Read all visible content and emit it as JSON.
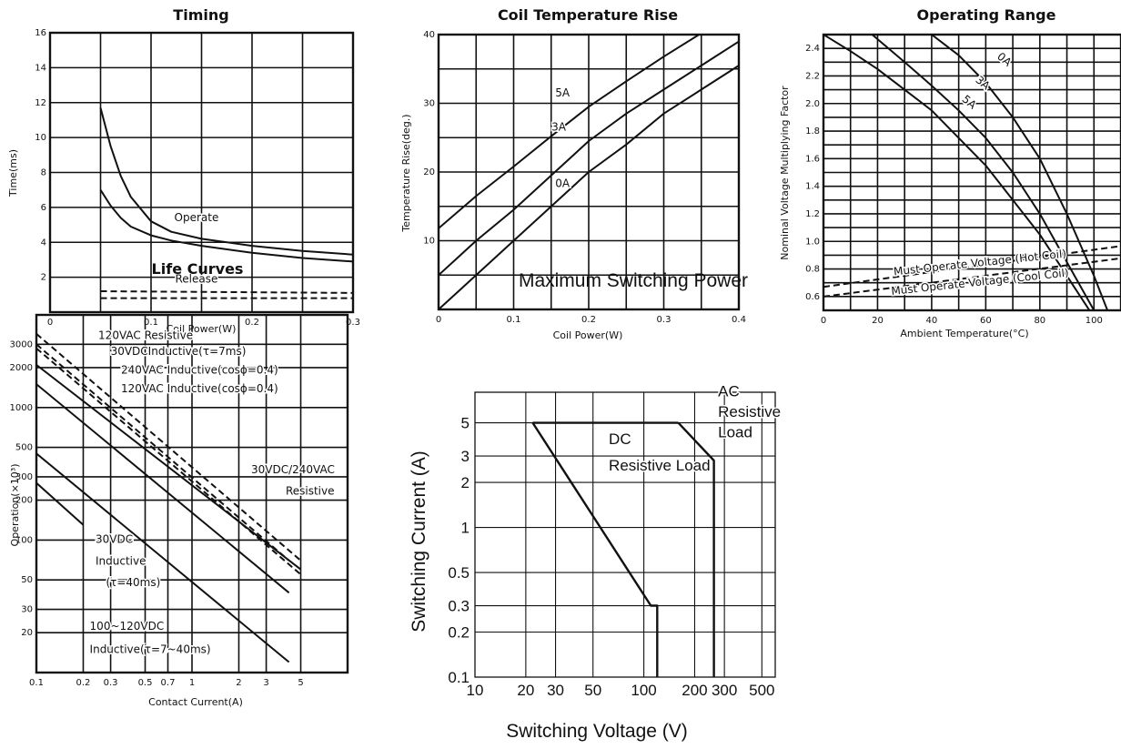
{
  "chart_data": [
    {
      "id": "timing",
      "type": "line",
      "title": "Timing",
      "xlabel": "Coil Power(W)",
      "ylabel": "Time(ms)",
      "xlim": [
        0,
        0.3
      ],
      "ylim": [
        0,
        16
      ],
      "xticks": [
        0,
        0.1,
        0.2,
        0.3
      ],
      "xtick_labels": [
        "0",
        "0.1",
        "0.2",
        "0.3"
      ],
      "yticks": [
        2,
        4,
        6,
        8,
        10,
        12,
        14,
        16
      ],
      "ytick_labels": [
        "2",
        "4",
        "6",
        "8",
        "10",
        "12",
        "14",
        "16"
      ],
      "series": [
        {
          "name": "Operate",
          "dashed": false,
          "x": [
            0.05,
            0.06,
            0.07,
            0.08,
            0.1,
            0.12,
            0.15,
            0.2,
            0.25,
            0.3
          ],
          "y": [
            11.7,
            9.5,
            7.8,
            6.6,
            5.2,
            4.6,
            4.2,
            3.8,
            3.5,
            3.3
          ]
        },
        {
          "name": "",
          "dashed": false,
          "x": [
            0.05,
            0.06,
            0.07,
            0.08,
            0.1,
            0.12,
            0.15,
            0.2,
            0.25,
            0.3
          ],
          "y": [
            7.0,
            6.1,
            5.4,
            4.9,
            4.4,
            4.1,
            3.8,
            3.4,
            3.1,
            2.9
          ]
        },
        {
          "name": "Release",
          "dashed": true,
          "x": [
            0.05,
            0.3
          ],
          "y": [
            1.2,
            1.1
          ]
        },
        {
          "name": "",
          "dashed": true,
          "x": [
            0.05,
            0.3
          ],
          "y": [
            0.8,
            0.8
          ]
        }
      ],
      "annotations": [
        {
          "text": "Operate",
          "x": 0.145,
          "y": 5.2
        },
        {
          "text": "Release",
          "x": 0.145,
          "y": 1.7
        }
      ]
    },
    {
      "id": "coil-temp",
      "type": "line",
      "title": "Coil Temperature Rise",
      "xlabel": "Coil Power(W)",
      "ylabel": "Temperature Rise(deg.)",
      "xlim": [
        0,
        0.4
      ],
      "ylim": [
        0,
        40
      ],
      "xticks": [
        0,
        0.1,
        0.2,
        0.3,
        0.4
      ],
      "xtick_labels": [
        "0",
        "0.1",
        "0.2",
        "0.3",
        "0.4"
      ],
      "yticks": [
        10,
        20,
        30,
        40
      ],
      "ytick_labels": [
        "10",
        "20",
        "30",
        "40"
      ],
      "series": [
        {
          "name": "5A",
          "dashed": false,
          "x": [
            0,
            0.05,
            0.1,
            0.15,
            0.2,
            0.25,
            0.3,
            0.35,
            0.4
          ],
          "y": [
            11.8,
            16.5,
            20.8,
            25.2,
            29.5,
            33.2,
            36.8,
            40.2,
            43.5
          ]
        },
        {
          "name": "3A",
          "dashed": false,
          "x": [
            0,
            0.05,
            0.1,
            0.15,
            0.2,
            0.25,
            0.3,
            0.35,
            0.4
          ],
          "y": [
            5,
            10,
            14.5,
            19.5,
            24.5,
            28.5,
            32,
            35.5,
            39
          ]
        },
        {
          "name": "0A",
          "dashed": false,
          "x": [
            0,
            0.05,
            0.1,
            0.15,
            0.2,
            0.25,
            0.3,
            0.35,
            0.4
          ],
          "y": [
            0,
            5,
            10,
            15,
            20,
            24,
            28.5,
            32,
            35.5
          ]
        }
      ],
      "annotations": [
        {
          "text": "5A",
          "x": 0.165,
          "y": 31
        },
        {
          "text": "3A",
          "x": 0.16,
          "y": 26
        },
        {
          "text": "0A",
          "x": 0.165,
          "y": 17.8
        }
      ]
    },
    {
      "id": "operating-range",
      "type": "line",
      "title": "Operating Range",
      "xlabel": "Ambient Temperature(°C)",
      "ylabel": "Nominal Voltage Multiplying Factor",
      "xlim": [
        0,
        110
      ],
      "ylim": [
        0.5,
        2.5
      ],
      "xticks": [
        0,
        20,
        40,
        60,
        80,
        100
      ],
      "xtick_labels": [
        "0",
        "20",
        "40",
        "60",
        "80",
        "100"
      ],
      "yticks": [
        0.6,
        0.8,
        1.0,
        1.2,
        1.4,
        1.6,
        1.8,
        2.0,
        2.2,
        2.4
      ],
      "ytick_labels": [
        "0.6",
        "0.8",
        "1.0",
        "1.2",
        "1.4",
        "1.6",
        "1.8",
        "2.0",
        "2.2",
        "2.4"
      ],
      "series": [
        {
          "name": "0A",
          "dashed": false,
          "x": [
            40,
            50,
            60,
            70,
            80,
            90,
            100,
            105,
            108
          ],
          "y": [
            2.5,
            2.35,
            2.15,
            1.9,
            1.6,
            1.2,
            0.75,
            0.5,
            0.3
          ]
        },
        {
          "name": "3A",
          "dashed": false,
          "x": [
            18,
            30,
            40,
            50,
            60,
            70,
            80,
            90,
            100,
            107
          ],
          "y": [
            2.5,
            2.3,
            2.13,
            1.95,
            1.75,
            1.5,
            1.2,
            0.85,
            0.5,
            0.3
          ]
        },
        {
          "name": "5A",
          "dashed": false,
          "x": [
            0,
            10,
            20,
            30,
            40,
            50,
            60,
            70,
            80,
            90,
            100,
            106
          ],
          "y": [
            2.5,
            2.38,
            2.25,
            2.1,
            1.95,
            1.75,
            1.55,
            1.3,
            1.05,
            0.75,
            0.45,
            0.3
          ]
        },
        {
          "name": "Must Operate Voltage (Hot Coil)",
          "dashed": true,
          "x": [
            0,
            115
          ],
          "y": [
            0.67,
            0.98
          ]
        },
        {
          "name": "Must Operate Voltage (Cool Coil)",
          "dashed": true,
          "x": [
            0,
            115
          ],
          "y": [
            0.6,
            0.89
          ]
        }
      ],
      "annotations": [
        {
          "text": "0A",
          "x": 66,
          "y": 2.3
        },
        {
          "text": "3A",
          "x": 58,
          "y": 2.13
        },
        {
          "text": "5A",
          "x": 53,
          "y": 1.99
        },
        {
          "text": "Must Operate Voltage (Hot Coil)",
          "x": 58,
          "y": 0.82
        },
        {
          "text": "Must Operate Voltage (Cool Coil)",
          "x": 58,
          "y": 0.68
        }
      ]
    },
    {
      "id": "life-curves",
      "type": "line",
      "title": "Life Curves",
      "xlabel": "Contact Current(A)",
      "ylabel": "Operation(×10³)",
      "x_scale": "log",
      "y_scale": "log",
      "xlim": [
        0.1,
        10
      ],
      "ylim": [
        10,
        5000
      ],
      "xticks": [
        0.1,
        0.2,
        0.3,
        0.5,
        0.7,
        1,
        2,
        3,
        5
      ],
      "xtick_labels": [
        "0.1",
        "0.2",
        "0.3",
        "0.5",
        "0.7",
        "1",
        "2",
        "3",
        "5"
      ],
      "yticks": [
        20,
        30,
        50,
        100,
        200,
        300,
        500,
        1000,
        2000,
        3000
      ],
      "ytick_labels": [
        "20",
        "30",
        "50",
        "100",
        "200",
        "300",
        "500",
        "1000",
        "2000",
        "3000"
      ],
      "series": [
        {
          "name": "120VAC Resistive",
          "dashed": true,
          "x": [
            0.1,
            5
          ],
          "y": [
            3600,
            70
          ]
        },
        {
          "name": "30VDCInductive(τ=7ms)",
          "dashed": true,
          "x": [
            0.1,
            4.2
          ],
          "y": [
            3000,
            70
          ]
        },
        {
          "name": "240VAC Inductive(cosϕ=0.4)",
          "dashed": true,
          "x": [
            0.1,
            5
          ],
          "y": [
            2800,
            55
          ]
        },
        {
          "name": "120VAC Inductive(cosϕ=0.4)",
          "dashed": false,
          "x": [
            0.1,
            5
          ],
          "y": [
            2100,
            60
          ]
        },
        {
          "name": "30VDC/240VAC Resistive",
          "dashed": false,
          "x": [
            0.1,
            4.2
          ],
          "y": [
            1500,
            40
          ]
        },
        {
          "name": "30VDC Inductive(τ=40ms)",
          "dashed": false,
          "x": [
            0.1,
            4.2
          ],
          "y": [
            450,
            12
          ]
        },
        {
          "name": "100~120VDC Inductive(τ=7~40ms)",
          "dashed": false,
          "x": [
            0.1,
            0.2
          ],
          "y": [
            270,
            130
          ]
        }
      ],
      "annotations": [
        {
          "text": "120VAC Resistive",
          "x": 0.25,
          "y": 3300
        },
        {
          "text": "30VDCInductive(τ=7ms)",
          "x": 0.3,
          "y": 2500
        },
        {
          "text": "240VAC Inductive(cosϕ=0.4)",
          "x": 0.35,
          "y": 1800
        },
        {
          "text": "120VAC Inductive(cosϕ=0.4)",
          "x": 0.35,
          "y": 1300
        },
        {
          "text": "30VDC/240VAC",
          "x": 2.4,
          "y": 320
        },
        {
          "text": "Resistive",
          "x": 4,
          "y": 220
        },
        {
          "text": "30VDC",
          "x": 0.24,
          "y": 95
        },
        {
          "text": "Inductive",
          "x": 0.24,
          "y": 65
        },
        {
          "text": "(τ=40ms)",
          "x": 0.28,
          "y": 45
        },
        {
          "text": "100~120VDC",
          "x": 0.22,
          "y": 21
        },
        {
          "text": "Inductive(τ=7~40ms)",
          "x": 0.22,
          "y": 14
        }
      ]
    },
    {
      "id": "max-switching-power",
      "type": "line",
      "title": "Maximum Switching Power",
      "xlabel": "Switching Voltage (V)",
      "ylabel": "Switching Current (A)",
      "x_scale": "log",
      "y_scale": "log",
      "xlim": [
        10,
        600
      ],
      "ylim": [
        0.1,
        8
      ],
      "xticks": [
        10,
        20,
        30,
        50,
        100,
        200,
        300,
        500
      ],
      "xtick_labels": [
        "10",
        "20",
        "30",
        "50",
        "100",
        "200",
        "300",
        "500"
      ],
      "yticks": [
        0.1,
        0.2,
        0.3,
        0.5,
        1,
        2,
        3,
        5
      ],
      "ytick_labels": [
        "0.1",
        "0.2",
        "0.3",
        "0.5",
        "1",
        "2",
        "3",
        "5"
      ],
      "series": [
        {
          "name": "AC Resistive Load",
          "dashed": false,
          "x": [
            160,
            260,
            260
          ],
          "y": [
            5,
            2.8,
            0.1
          ]
        },
        {
          "name": "DC Resistive Load",
          "dashed": false,
          "x": [
            22,
            110,
            120,
            120
          ],
          "y": [
            5,
            0.3,
            0.3,
            0.1
          ]
        },
        {
          "name": "",
          "dashed": false,
          "x": [
            22,
            160
          ],
          "y": [
            5,
            5
          ]
        }
      ],
      "annotations": [
        {
          "text": "AC",
          "x": 275,
          "y": 7.5
        },
        {
          "text": "Resistive",
          "x": 275,
          "y": 5.5
        },
        {
          "text": "Load",
          "x": 275,
          "y": 4.0
        },
        {
          "text": "DC",
          "x": 62,
          "y": 3.6
        },
        {
          "text": "Resistive Load",
          "x": 62,
          "y": 2.4
        }
      ]
    }
  ]
}
